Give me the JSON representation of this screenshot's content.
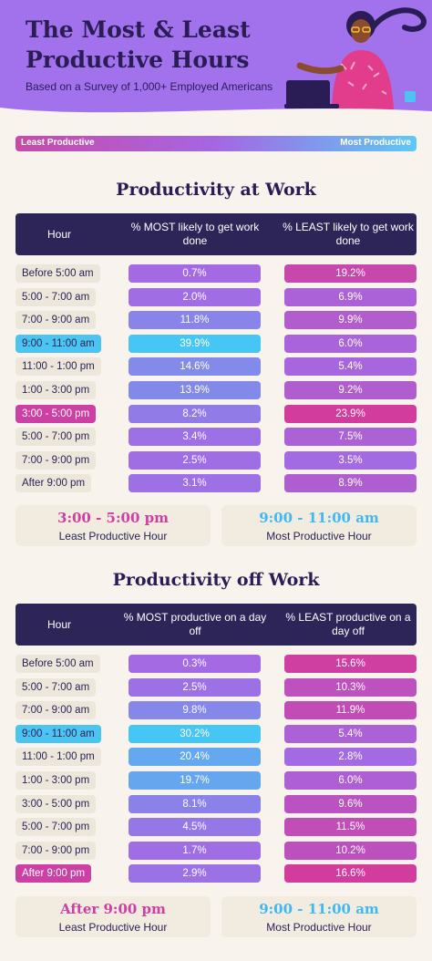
{
  "header": {
    "title": "The Most & Least Productive Hours",
    "subtitle": "Based on a Survey of 1,000+ Employed Americans"
  },
  "legend": {
    "left": "Least Productive",
    "right": "Most Productive"
  },
  "colors": {
    "header": "#a172ec",
    "dark": "#2d2458",
    "most": "#4cc4f2",
    "least": "#cc3fa3",
    "neutral_chip": "#ede6da"
  },
  "chart_data": [
    {
      "type": "table",
      "title": "Productivity at Work",
      "columns": [
        "Hour",
        "% MOST likely to get work done",
        "% LEAST likely to get work done"
      ],
      "categories": [
        "Before 5:00 am",
        "5:00 - 7:00 am",
        "7:00 - 9:00 am",
        "9:00 - 11:00 am",
        "11:00 - 1:00 pm",
        "1:00 - 3:00 pm",
        "3:00 - 5:00 pm",
        "5:00 - 7:00 pm",
        "7:00 - 9:00 pm",
        "After 9:00 pm"
      ],
      "highlight": [
        "",
        "",
        "",
        "most",
        "",
        "",
        "least",
        "",
        "",
        ""
      ],
      "series": [
        {
          "name": "% MOST likely to get work done",
          "values": [
            0.7,
            2.0,
            11.8,
            39.9,
            14.6,
            13.9,
            8.2,
            3.4,
            2.5,
            3.1
          ]
        },
        {
          "name": "% LEAST likely to get work done",
          "values": [
            19.2,
            6.9,
            9.9,
            6.0,
            5.4,
            9.2,
            23.9,
            7.5,
            3.5,
            8.9
          ]
        }
      ],
      "summary": {
        "least_time": "3:00 - 5:00 pm",
        "least_label": "Least Productive Hour",
        "most_time": "9:00 - 11:00 am",
        "most_label": "Most Productive Hour"
      }
    },
    {
      "type": "table",
      "title": "Productivity off Work",
      "columns": [
        "Hour",
        "% MOST productive on a day off",
        "% LEAST productive on a day off"
      ],
      "categories": [
        "Before 5:00 am",
        "5:00 - 7:00 am",
        "7:00 - 9:00 am",
        "9:00 - 11:00 am",
        "11:00 - 1:00 pm",
        "1:00 - 3:00 pm",
        "3:00 - 5:00 pm",
        "5:00 - 7:00 pm",
        "7:00 - 9:00 pm",
        "After 9:00 pm"
      ],
      "highlight": [
        "",
        "",
        "",
        "most",
        "",
        "",
        "",
        "",
        "",
        "least"
      ],
      "series": [
        {
          "name": "% MOST productive on a day off",
          "values": [
            0.3,
            2.5,
            9.8,
            30.2,
            20.4,
            19.7,
            8.1,
            4.5,
            1.7,
            2.9
          ]
        },
        {
          "name": "% LEAST productive on a day off",
          "values": [
            15.6,
            10.3,
            11.9,
            5.4,
            2.8,
            6.0,
            9.6,
            11.5,
            10.2,
            16.6
          ]
        }
      ],
      "summary": {
        "least_time": "After 9:00 pm",
        "least_label": "Least Productive Hour",
        "most_time": "9:00 - 11:00 am",
        "most_label": "Most Productive Hour"
      }
    }
  ]
}
